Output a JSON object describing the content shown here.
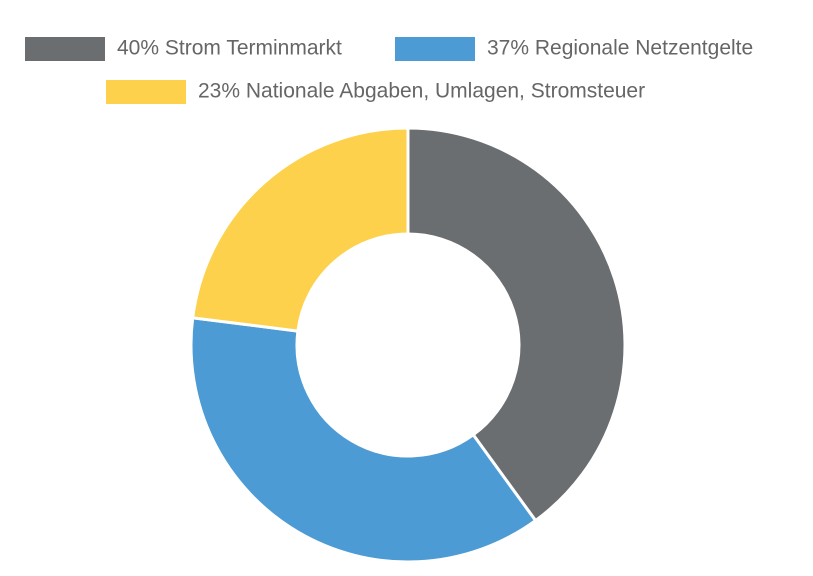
{
  "chart_data": {
    "type": "donut",
    "categories": [
      "40% Strom Terminmarkt",
      "37% Regionale Netzentgelte",
      "23% Nationale Abgaben, Umlagen, Stromsteuer"
    ],
    "values": [
      40,
      37,
      23
    ],
    "colors": [
      "#6a6e71",
      "#4c9bd5",
      "#fdd14b"
    ]
  }
}
